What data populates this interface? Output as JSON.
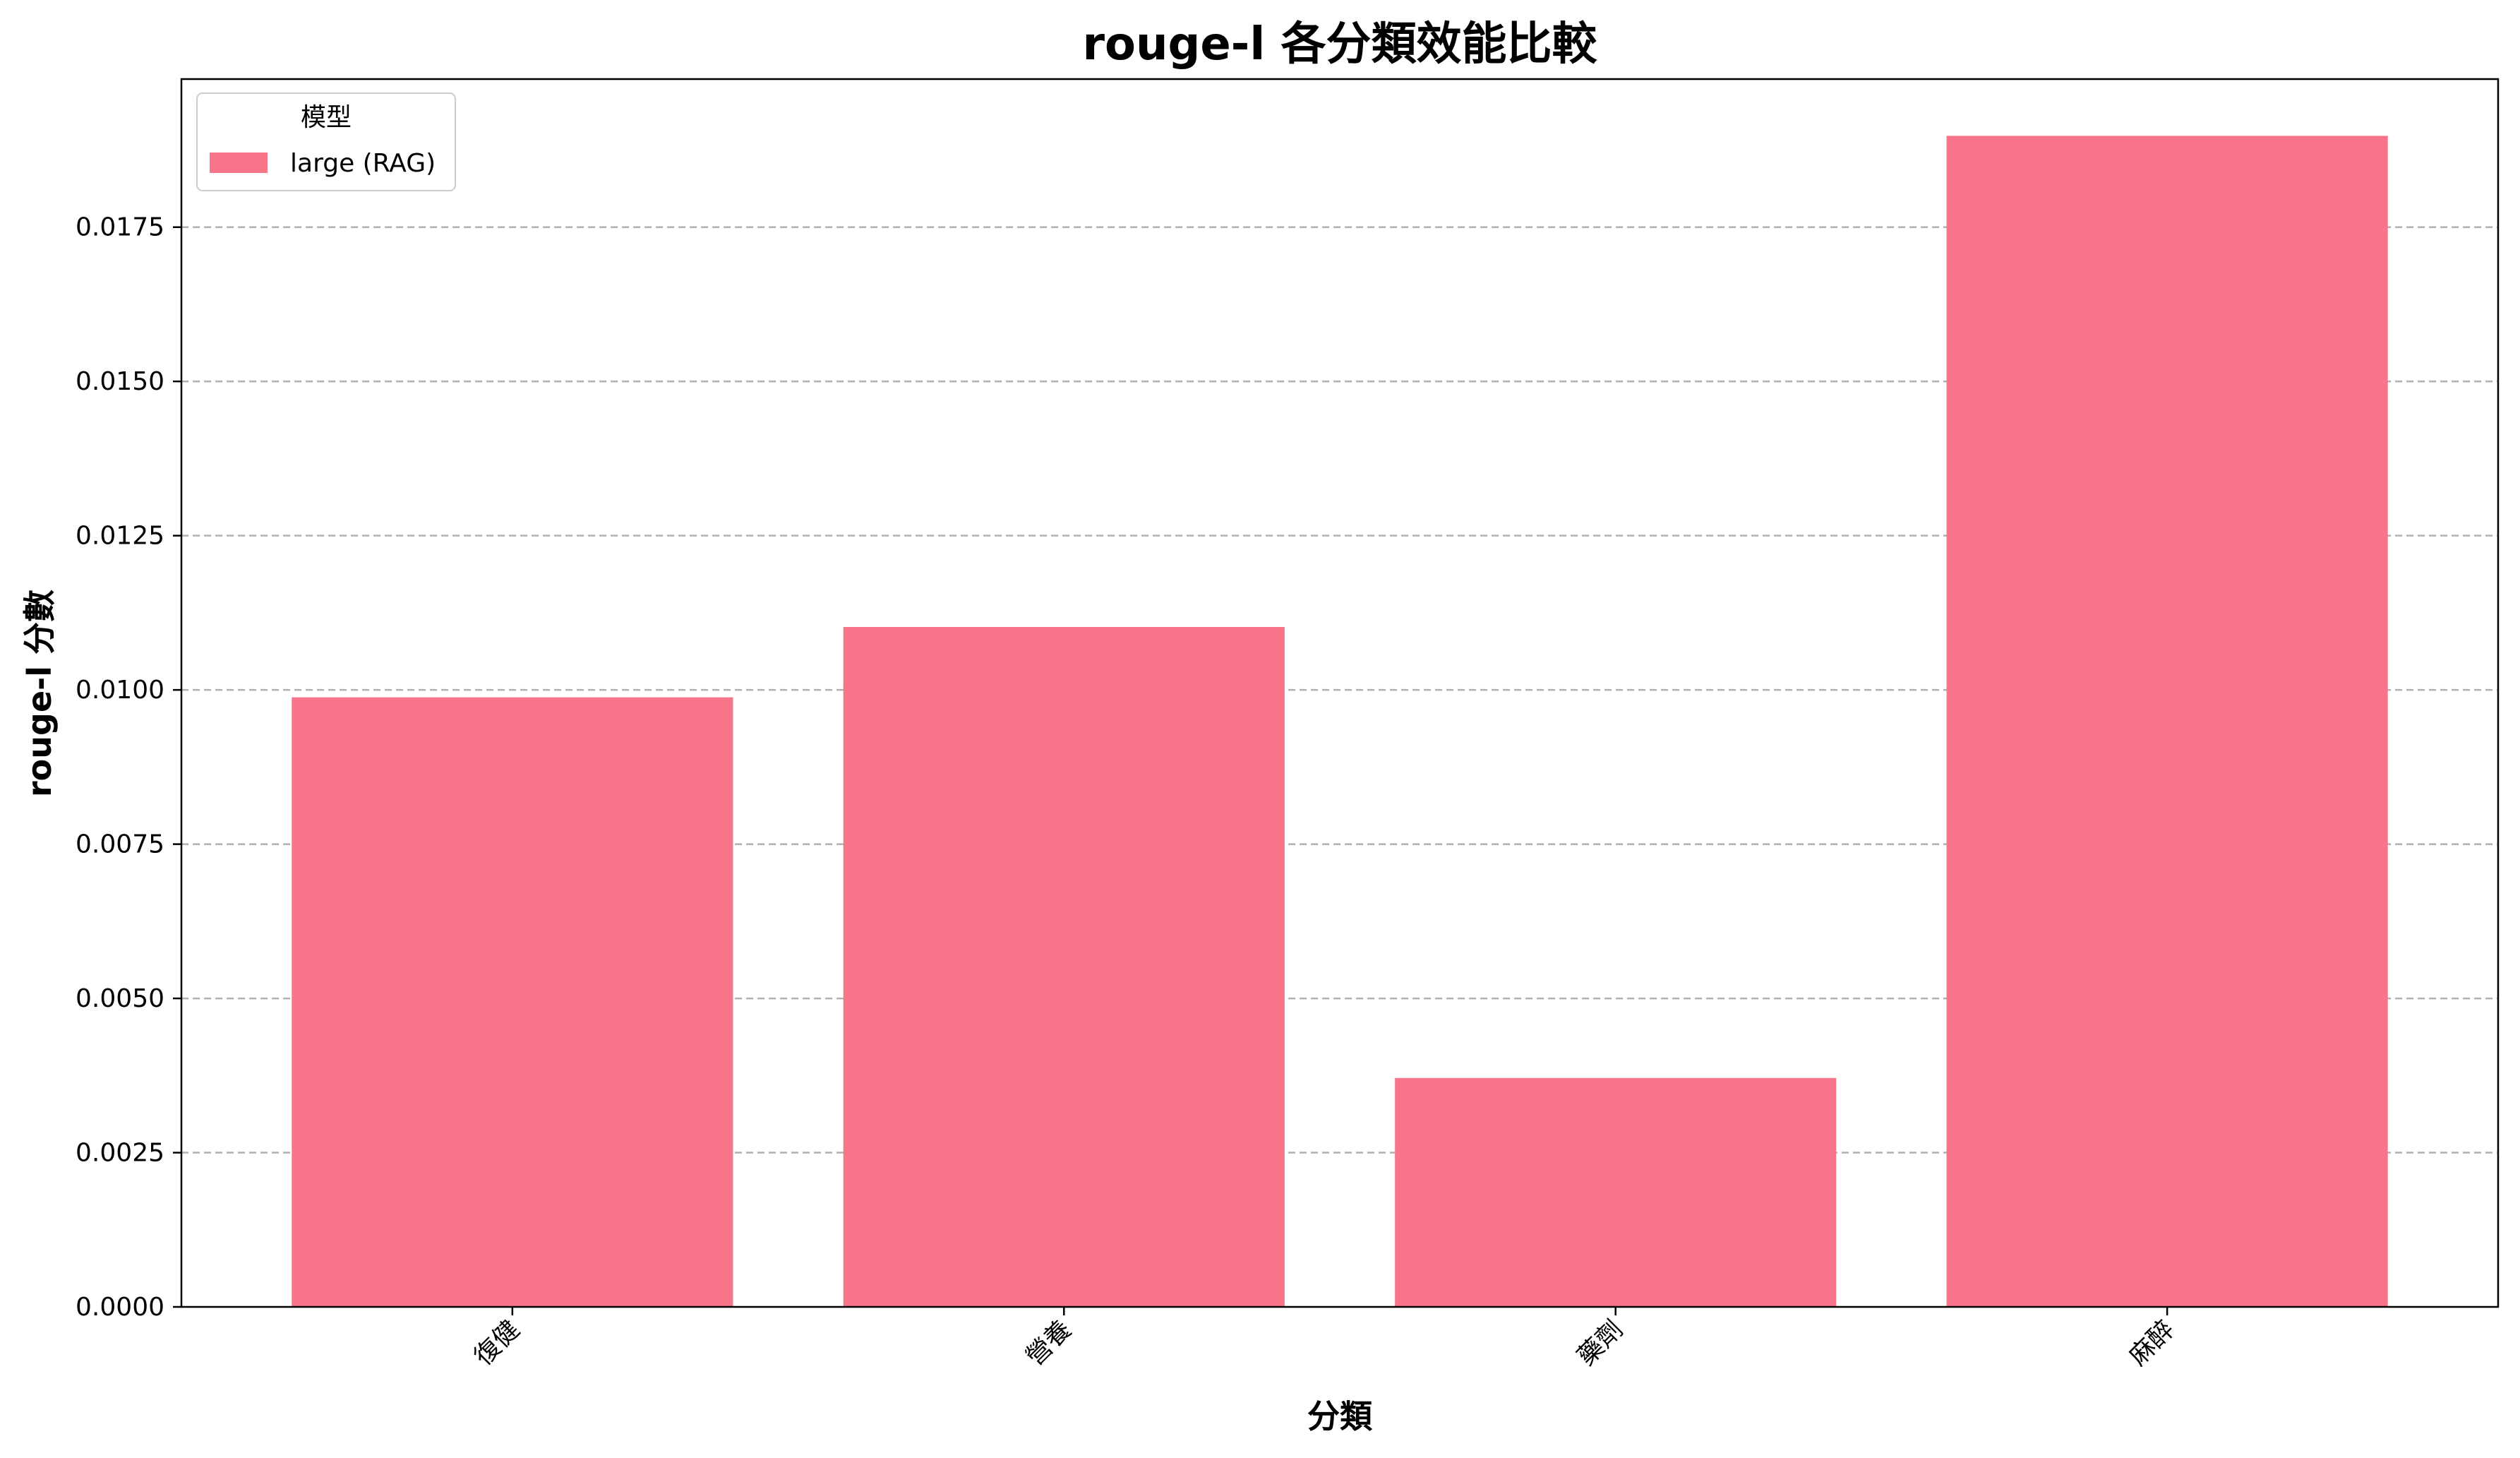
{
  "chart_data": {
    "type": "bar",
    "title": "rouge-l 各分類效能比較",
    "xlabel": "分類",
    "ylabel": "rouge-l 分數",
    "categories": [
      "復健",
      "營養",
      "藥劑",
      "麻醉"
    ],
    "series": [
      {
        "name": "large (RAG)",
        "values": [
          0.00988,
          0.01102,
          0.00371,
          0.01898
        ],
        "color": "#f77489"
      }
    ],
    "ylim": [
      0,
      0.0199
    ],
    "yticks": [
      "0.0000",
      "0.0025",
      "0.0050",
      "0.0075",
      "0.0100",
      "0.0125",
      "0.0150",
      "0.0175"
    ],
    "grid": true,
    "legend": {
      "title": "模型",
      "placement": "top-left"
    }
  }
}
